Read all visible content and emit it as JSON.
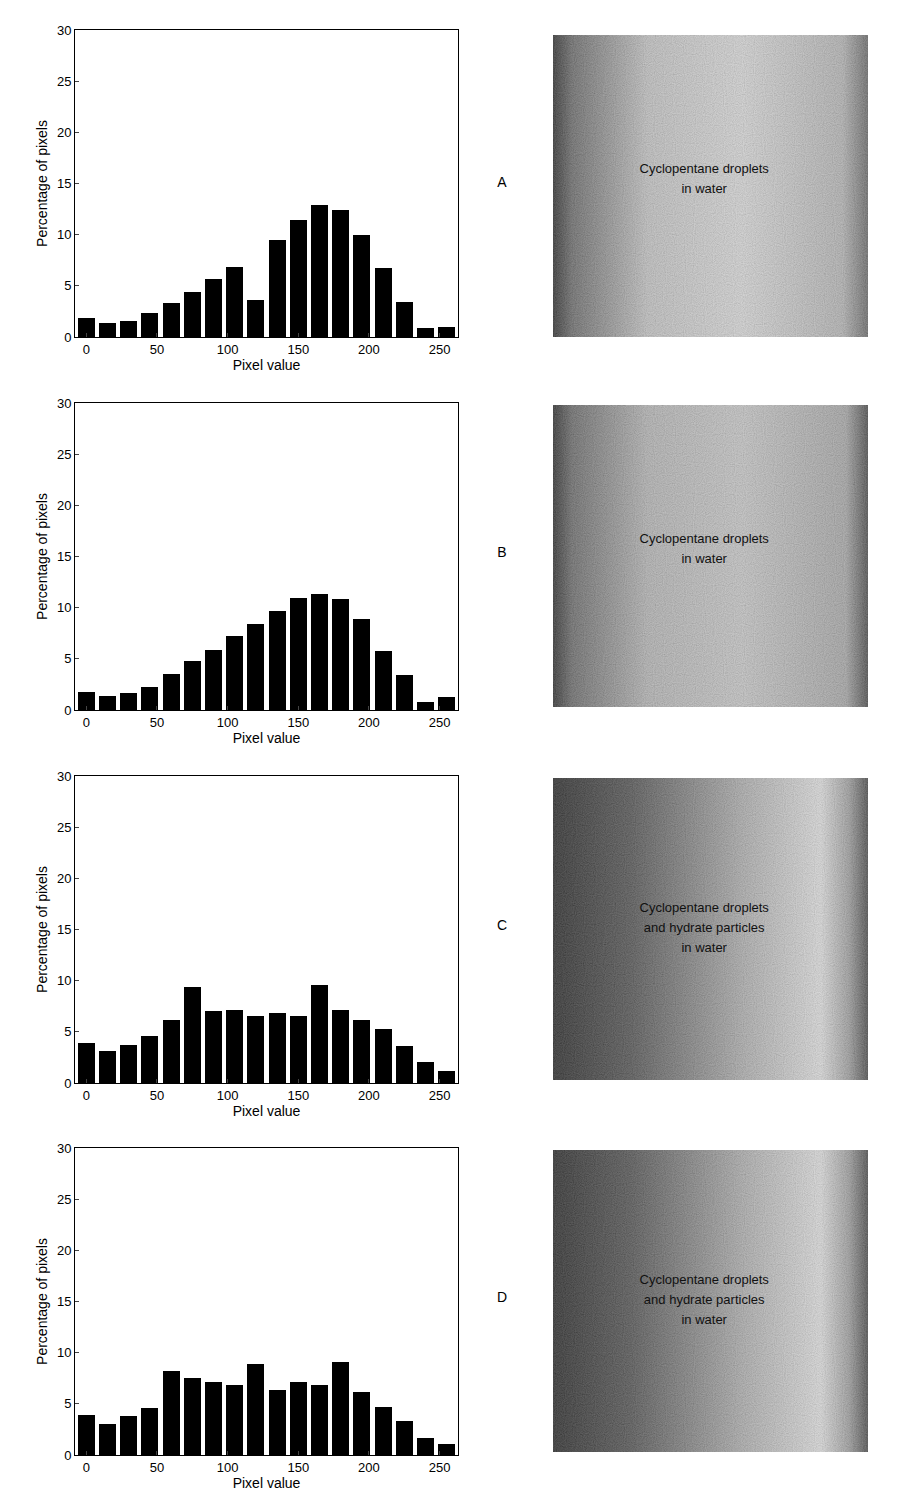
{
  "chart_data": [
    {
      "type": "bar",
      "title": "A",
      "xlabel": "Pixel value",
      "ylabel": "Percentage of pixels",
      "x": [
        0,
        15,
        30,
        45,
        60,
        75,
        90,
        105,
        120,
        135,
        150,
        165,
        180,
        195,
        210,
        225,
        240,
        255
      ],
      "values": [
        1.9,
        1.4,
        1.6,
        2.3,
        3.3,
        4.4,
        5.7,
        6.8,
        3.6,
        9.5,
        11.4,
        12.9,
        12.4,
        10.0,
        6.7,
        3.4,
        0.9,
        1.0
      ],
      "color": "#000000",
      "xlim": [
        -8,
        263
      ],
      "ylim": [
        0,
        30
      ],
      "xticks": [
        0,
        50,
        100,
        150,
        200,
        250
      ],
      "yticks": [
        0,
        5,
        10,
        15,
        20,
        25,
        30
      ],
      "grid": false,
      "annotations": [
        "Cyclopentane droplets in water"
      ]
    },
    {
      "type": "bar",
      "title": "B",
      "xlabel": "Pixel value",
      "ylabel": "Percentage of pixels",
      "x": [
        0,
        15,
        30,
        45,
        60,
        75,
        90,
        105,
        120,
        135,
        150,
        165,
        180,
        195,
        210,
        225,
        240,
        255
      ],
      "values": [
        1.8,
        1.4,
        1.7,
        2.2,
        3.5,
        4.8,
        5.9,
        7.2,
        8.4,
        9.7,
        10.9,
        11.3,
        10.8,
        8.9,
        5.8,
        3.4,
        0.8,
        1.3
      ],
      "color": "#000000",
      "xlim": [
        -8,
        263
      ],
      "ylim": [
        0,
        30
      ],
      "xticks": [
        0,
        50,
        100,
        150,
        200,
        250
      ],
      "yticks": [
        0,
        5,
        10,
        15,
        20,
        25,
        30
      ],
      "grid": false,
      "annotations": [
        "Cyclopentane droplets in water"
      ]
    },
    {
      "type": "bar",
      "title": "C",
      "xlabel": "Pixel value",
      "ylabel": "Percentage of pixels",
      "x": [
        0,
        15,
        30,
        45,
        60,
        75,
        90,
        105,
        120,
        135,
        150,
        165,
        180,
        195,
        210,
        225,
        240,
        255
      ],
      "values": [
        3.9,
        3.1,
        3.7,
        4.6,
        6.2,
        9.4,
        7.0,
        7.1,
        6.5,
        6.8,
        6.5,
        9.6,
        7.1,
        6.2,
        5.3,
        3.6,
        2.1,
        1.2
      ],
      "color": "#000000",
      "xlim": [
        -8,
        263
      ],
      "ylim": [
        0,
        30
      ],
      "xticks": [
        0,
        50,
        100,
        150,
        200,
        250
      ],
      "yticks": [
        0,
        5,
        10,
        15,
        20,
        25,
        30
      ],
      "grid": false,
      "annotations": [
        "Cyclopentane droplets and hydrate particles in water"
      ]
    },
    {
      "type": "bar",
      "title": "D",
      "xlabel": "Pixel value",
      "ylabel": "Percentage of pixels",
      "x": [
        0,
        15,
        30,
        45,
        60,
        75,
        90,
        105,
        120,
        135,
        150,
        165,
        180,
        195,
        210,
        225,
        240,
        255
      ],
      "values": [
        3.9,
        3.0,
        3.8,
        4.6,
        8.2,
        7.5,
        7.1,
        6.8,
        8.9,
        6.4,
        7.1,
        6.8,
        9.1,
        6.2,
        4.7,
        3.3,
        1.7,
        1.1
      ],
      "color": "#000000",
      "xlim": [
        -8,
        263
      ],
      "ylim": [
        0,
        30
      ],
      "xticks": [
        0,
        50,
        100,
        150,
        200,
        250
      ],
      "yticks": [
        0,
        5,
        10,
        15,
        20,
        25,
        30
      ],
      "grid": false,
      "annotations": [
        "Cyclopentane droplets and hydrate particles in water"
      ]
    }
  ]
}
